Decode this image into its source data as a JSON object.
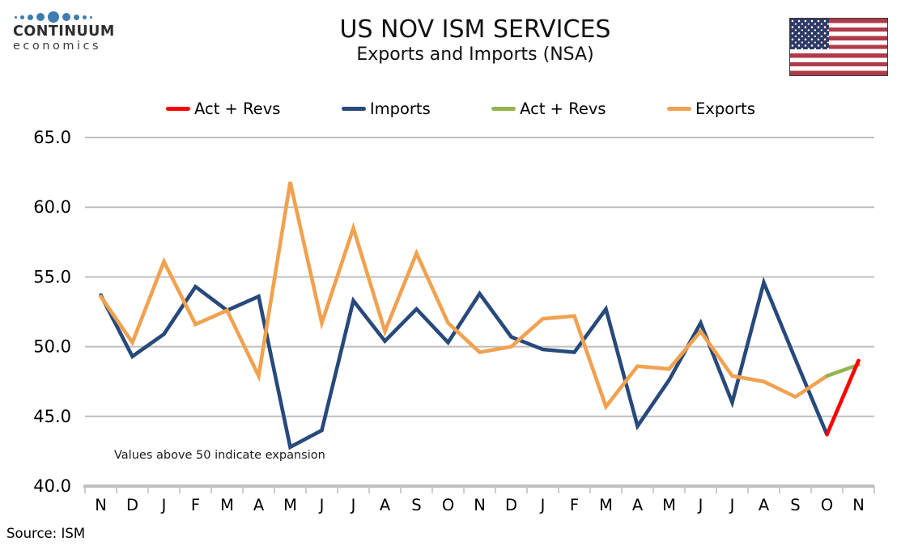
{
  "header": {
    "logo": {
      "line1": "CONTINUUM",
      "line2": "economics"
    },
    "title": "US NOV ISM SERVICES",
    "subtitle": "Exports and Imports (NSA)"
  },
  "legend": [
    {
      "label": "Act + Revs",
      "color": "#fe0000"
    },
    {
      "label": "Imports",
      "color": "#27497b"
    },
    {
      "label": "Act + Revs",
      "color": "#94b44d"
    },
    {
      "label": "Exports",
      "color": "#f1a14f"
    }
  ],
  "annotation": "Values above 50 indicate expansion",
  "source": "Source: ISM",
  "chart_data": {
    "type": "line",
    "title": "US NOV ISM SERVICES",
    "subtitle": "Exports and Imports (NSA)",
    "xlabel": "",
    "ylabel": "",
    "ylim": [
      40,
      65
    ],
    "grid": true,
    "legend_position": "top",
    "grid_color": "#bfbfbf",
    "axis_color": "#bfbfbf",
    "yticks": [
      {
        "label": "65.0",
        "value": 65
      },
      {
        "label": "60.0",
        "value": 60
      },
      {
        "label": "55.0",
        "value": 55
      },
      {
        "label": "50.0",
        "value": 50
      },
      {
        "label": "45.0",
        "value": 45
      },
      {
        "label": "40.0",
        "value": 40
      }
    ],
    "categories": [
      "N",
      "D",
      "J",
      "F",
      "M",
      "A",
      "M",
      "J",
      "J",
      "A",
      "S",
      "O",
      "N",
      "D",
      "J",
      "F",
      "M",
      "A",
      "M",
      "J",
      "J",
      "A",
      "S",
      "O",
      "N"
    ],
    "series": [
      {
        "name": "Imports",
        "color": "#27497b",
        "values": [
          53.7,
          49.3,
          50.9,
          54.3,
          52.6,
          53.6,
          42.8,
          44.0,
          53.3,
          50.4,
          52.7,
          50.3,
          53.8,
          50.7,
          49.8,
          49.6,
          52.7,
          44.3,
          47.6,
          51.7,
          46.0,
          54.6,
          49.1,
          43.7,
          null
        ]
      },
      {
        "name": "Exports",
        "color": "#f1a14f",
        "values": [
          53.6,
          50.3,
          56.1,
          51.6,
          52.6,
          47.9,
          61.8,
          51.7,
          58.5,
          51.1,
          56.7,
          51.7,
          49.6,
          50.0,
          52.0,
          52.2,
          45.7,
          48.6,
          48.4,
          51.1,
          47.9,
          47.5,
          46.4,
          47.9,
          null
        ]
      },
      {
        "name": "Act + Revs (Exports)",
        "color": "#94b44d",
        "values": [
          null,
          null,
          null,
          null,
          null,
          null,
          null,
          null,
          null,
          null,
          null,
          null,
          null,
          null,
          null,
          null,
          null,
          null,
          null,
          null,
          null,
          null,
          null,
          47.9,
          48.7
        ]
      },
      {
        "name": "Act + Revs (Imports)",
        "color": "#fe0000",
        "values": [
          null,
          null,
          null,
          null,
          null,
          null,
          null,
          null,
          null,
          null,
          null,
          null,
          null,
          null,
          null,
          null,
          null,
          null,
          null,
          null,
          null,
          null,
          null,
          43.7,
          49.0
        ]
      }
    ]
  }
}
